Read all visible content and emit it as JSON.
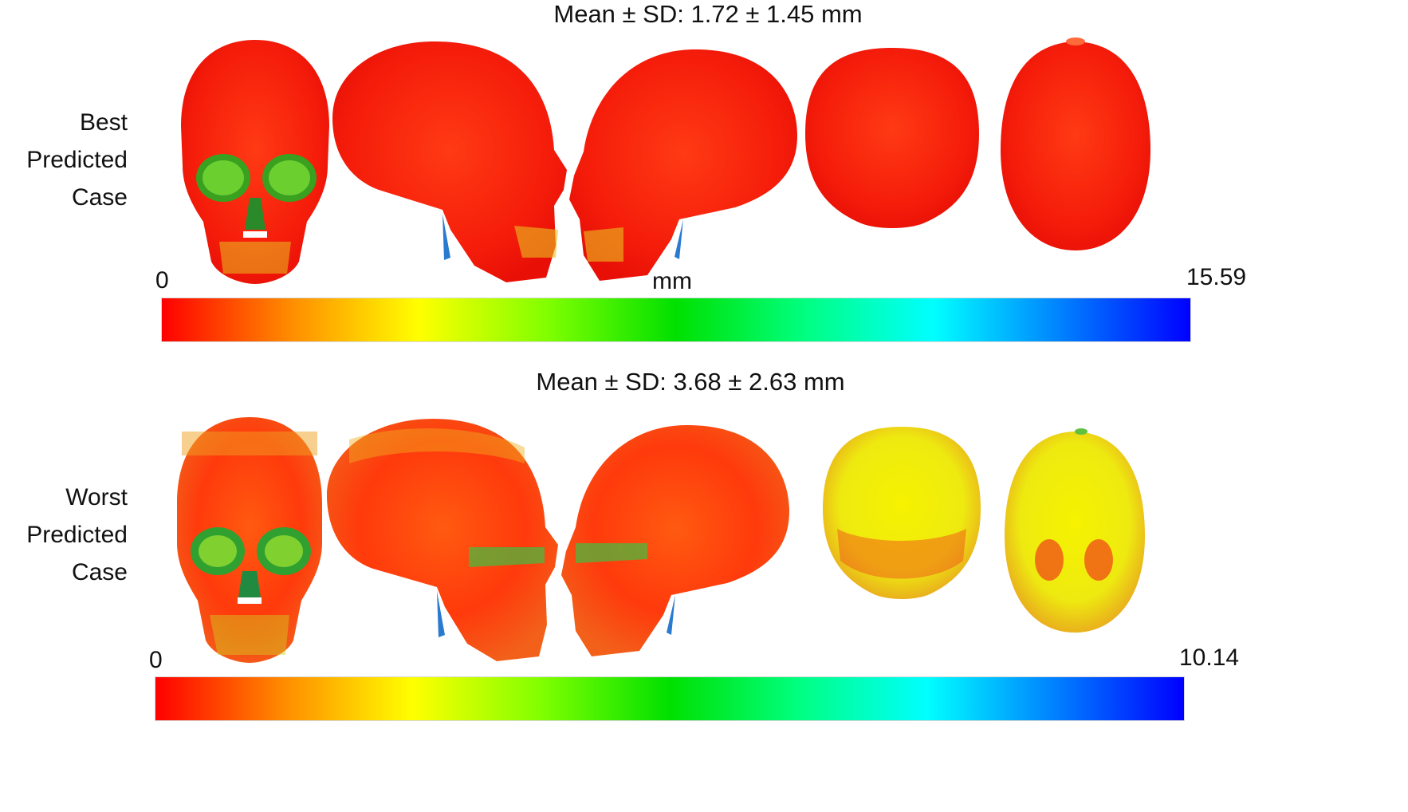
{
  "best": {
    "label_lines": [
      "Best",
      "Predicted",
      "Case"
    ],
    "stat": "Mean ± SD: 1.72 ± 1.45 mm",
    "scale_min": "0",
    "scale_unit": "mm",
    "scale_max": "15.59"
  },
  "worst": {
    "label_lines": [
      "Worst",
      "Predicted",
      "Case"
    ],
    "stat": "Mean ± SD: 3.68 ± 2.63 mm",
    "scale_min": "0",
    "scale_max": "10.14"
  },
  "colormap": [
    "#ff0000",
    "#ff8c00",
    "#ffff00",
    "#80ff00",
    "#00e000",
    "#00ff80",
    "#00ffff",
    "#0080ff",
    "#0000ff"
  ],
  "views": [
    "frontal-skull-view",
    "right-lateral-skull-view",
    "left-lateral-skull-view",
    "posterior-skull-view",
    "superior-skull-view"
  ]
}
